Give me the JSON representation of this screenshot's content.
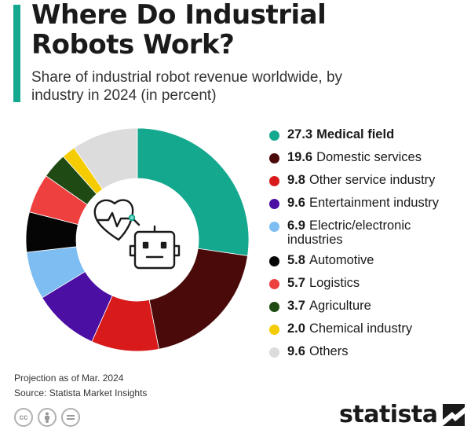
{
  "header": {
    "title": "Where Do Industrial Robots Work?",
    "subtitle": "Share of industrial robot revenue worldwide, by industry in 2024 (in percent)"
  },
  "chart_data": {
    "type": "pie",
    "style": "donut",
    "title": "Where Do Industrial Robots Work?",
    "subtitle": "Share of industrial robot revenue worldwide, by industry in 2024 (in percent)",
    "unit": "percent",
    "legend_position": "right",
    "slices": [
      {
        "label": "Medical field",
        "value": 27.3,
        "value_text": "27.3",
        "color": "#14a88e"
      },
      {
        "label": "Domestic services",
        "value": 19.6,
        "value_text": "19.6",
        "color": "#4a0a0a"
      },
      {
        "label": "Other service industry",
        "value": 9.8,
        "value_text": "9.8",
        "color": "#d81a1a"
      },
      {
        "label": "Entertainment industry",
        "value": 9.6,
        "value_text": "9.6",
        "color": "#4b0fa3"
      },
      {
        "label": "Electric/electronic industries",
        "value": 6.9,
        "value_text": "6.9",
        "color": "#7ebdf2"
      },
      {
        "label": "Automotive",
        "value": 5.8,
        "value_text": "5.8",
        "color": "#050505"
      },
      {
        "label": "Logistics",
        "value": 5.7,
        "value_text": "5.7",
        "color": "#ef4040"
      },
      {
        "label": "Agriculture",
        "value": 3.7,
        "value_text": "3.7",
        "color": "#1f4a14"
      },
      {
        "label": "Chemical industry",
        "value": 2.0,
        "value_text": "2.0",
        "color": "#f5cc00"
      },
      {
        "label": "Others",
        "value": 9.6,
        "value_text": "9.6",
        "color": "#dcdcdc"
      }
    ],
    "center_icon": "heart-robot-icon"
  },
  "footer": {
    "note": "Projection as of Mar. 2024",
    "source": "Statista Market Insights",
    "license_icons": [
      "cc-icon",
      "by-icon",
      "nd-icon"
    ],
    "brand": "statista"
  },
  "colors": {
    "accent": "#14a88e",
    "icon_stroke": "#1a1a1a"
  }
}
